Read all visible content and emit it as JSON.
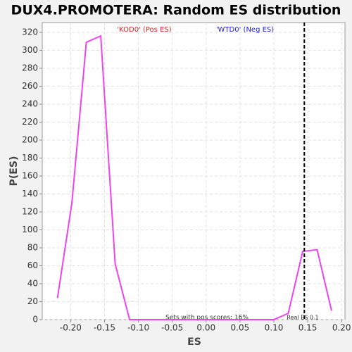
{
  "chart_data": {
    "type": "line",
    "title": "DUX4.PROMOTERA: Random ES distribution",
    "x_label": "ES",
    "y_label": "P(ES)",
    "x": [
      -0.2195,
      -0.1982,
      -0.1769,
      -0.1556,
      -0.1343,
      -0.113,
      -0.0917,
      -0.0704,
      -0.0491,
      -0.0278,
      -0.0065,
      0.0148,
      0.0361,
      0.0574,
      0.0787,
      0.1,
      0.1213,
      0.1426,
      0.1639,
      0.1852
    ],
    "series": [
      {
        "name": "P(ES)",
        "color": "#ee44ee",
        "values": [
          24,
          130,
          309,
          316,
          62,
          0,
          0,
          0,
          0,
          0,
          0,
          0,
          0,
          0,
          0,
          0,
          7,
          76,
          78,
          10
        ]
      }
    ],
    "xlim": [
      -0.242,
      0.205
    ],
    "ylim": [
      0,
      331
    ],
    "xticks": [
      {
        "value": -0.2,
        "label": "-0.20"
      },
      {
        "value": -0.15,
        "label": "-0.15"
      },
      {
        "value": -0.1,
        "label": "-0.10"
      },
      {
        "value": -0.05,
        "label": "-0.05"
      },
      {
        "value": 0,
        "label": "0.00"
      },
      {
        "value": 0.05,
        "label": "0.05"
      },
      {
        "value": 0.1,
        "label": "0.10"
      },
      {
        "value": 0.15,
        "label": "0.15"
      },
      {
        "value": 0.2,
        "label": "0.20"
      }
    ],
    "yticks": [
      0,
      20,
      40,
      60,
      80,
      100,
      120,
      140,
      160,
      180,
      200,
      220,
      240,
      260,
      280,
      300,
      320
    ],
    "grid": true,
    "real_es_line": 0.145,
    "annotations": {
      "pos": "'KOD0' (Pos ES)",
      "neg": "'WTD0' (Neg ES)",
      "sets": "Sets with pos scores: 16%",
      "real": "Real ES 0.1"
    }
  }
}
